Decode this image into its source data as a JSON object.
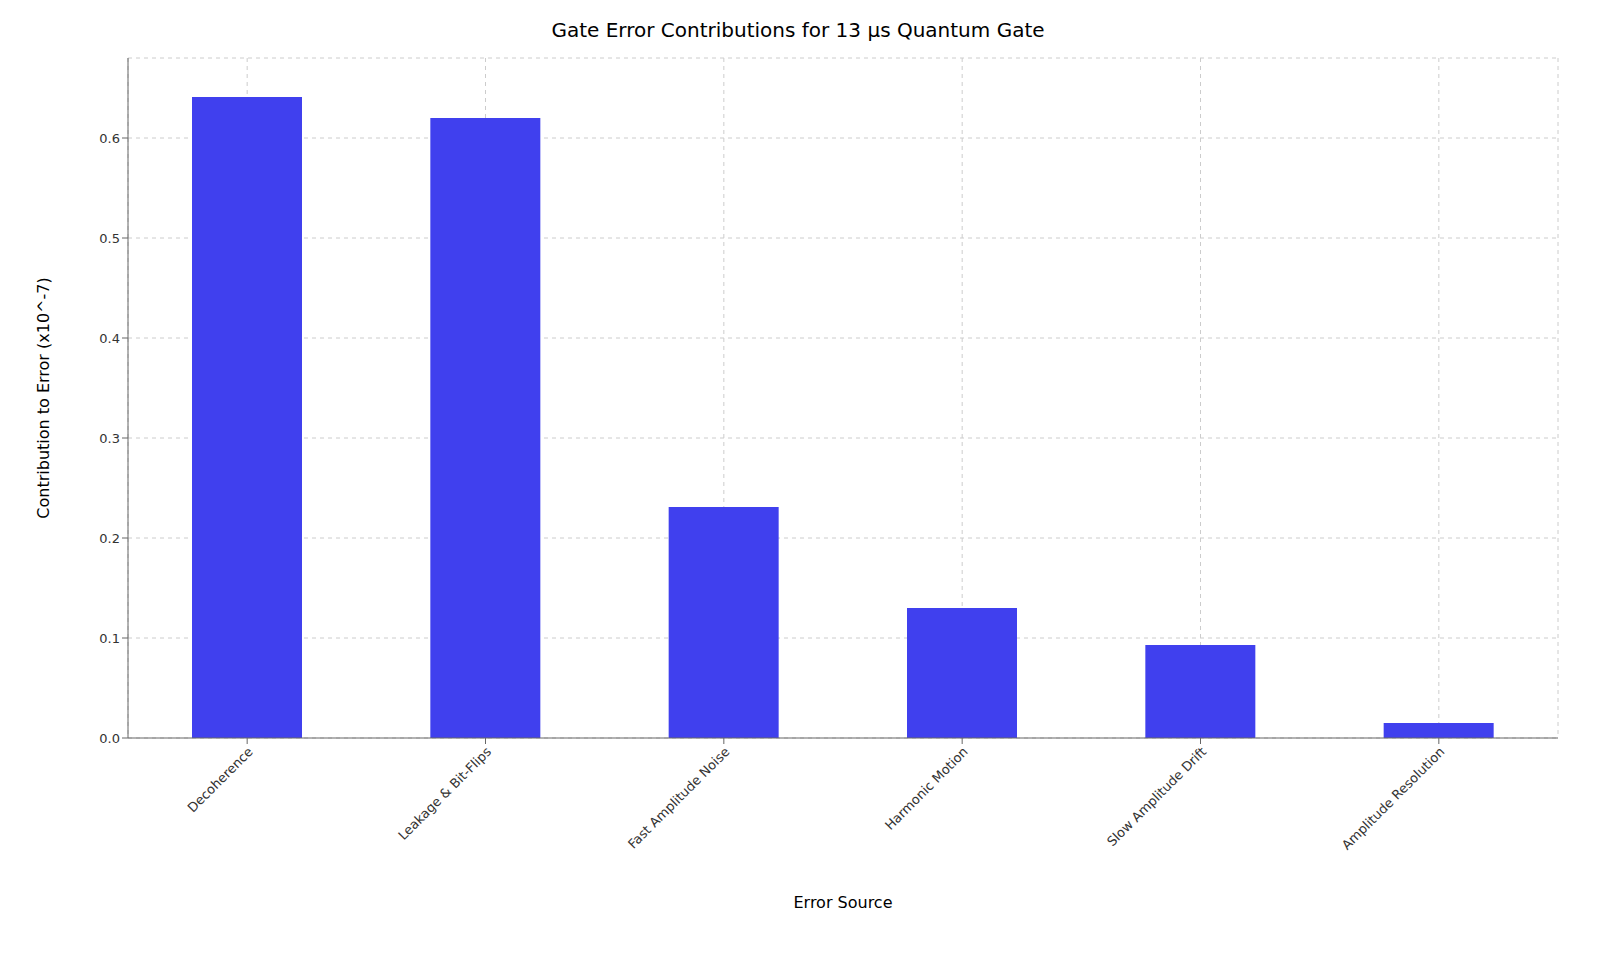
{
  "chart_data": {
    "type": "bar",
    "title": "Gate Error Contributions for 13 μs Quantum Gate",
    "xlabel": "Error Source",
    "ylabel": "Contribution to Error (x10^-7)",
    "categories": [
      "Decoherence",
      "Leakage & Bit-Flips",
      "Fast Amplitude Noise",
      "Harmonic Motion",
      "Slow Amplitude Drift",
      "Amplitude Resolution"
    ],
    "values": [
      0.641,
      0.62,
      0.231,
      0.13,
      0.093,
      0.015
    ],
    "color": "#4040ee",
    "ylim": [
      0,
      0.68
    ],
    "yticks": [
      {
        "value": 0,
        "label": "0.0"
      },
      0.1,
      0.2,
      0.3,
      0.4,
      0.5,
      0.6
    ],
    "grid": true
  }
}
